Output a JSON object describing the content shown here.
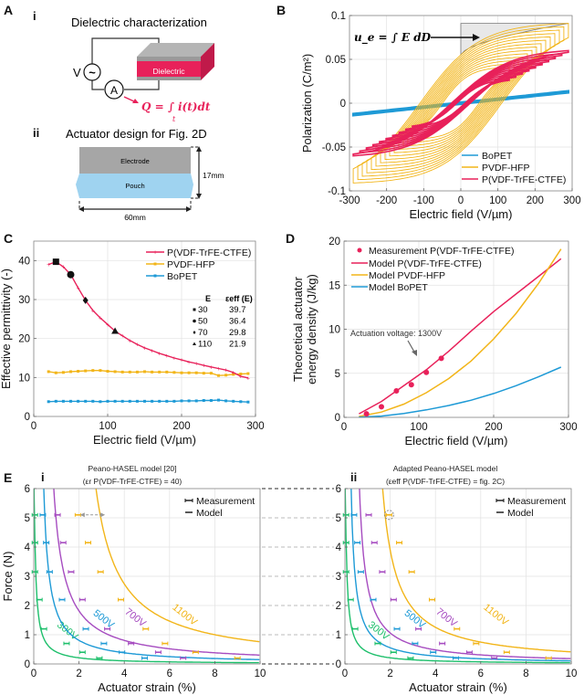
{
  "panelA": {
    "letter": "A",
    "i_label": "i",
    "i_title": "Dielectric characterization",
    "voltage_label": "V",
    "ammeter_label": "A",
    "source_symbol": "~",
    "dielectric_label": "Dielectric",
    "charge_formula": "Q = ∫ i(t)dt",
    "charge_formula_sub": "t",
    "ii_label": "ii",
    "ii_title": "Actuator design for Fig. 2D",
    "electrode_label": "Electrode",
    "pouch_label": "Pouch",
    "height_dim": "17mm",
    "width_dim": "60mm",
    "colors": {
      "dielectric": "#e8215a",
      "electrode": "#a6a6a6",
      "pouch": "#9fd3f0"
    }
  },
  "colors": {
    "bopet": "#1e9ad6",
    "pvdf_hfp": "#f2b519",
    "pvdf_trfe_ctfe": "#e8215a",
    "v300": "#1dbf6b",
    "v500": "#1e9ad6",
    "v700": "#a64cc0",
    "v1100": "#f2b519"
  },
  "chart_data": [
    {
      "id": "B",
      "letter": "B",
      "type": "line",
      "title": "",
      "xlabel": "Electric field (V/µm)",
      "ylabel": "Polarization (C/m²)",
      "xlim": [
        -300,
        300
      ],
      "ylim": [
        -0.1,
        0.1
      ],
      "xticks": [
        "-300",
        "-200",
        "-100",
        "0",
        "100",
        "200",
        "300"
      ],
      "xtick_values": [
        -300,
        -200,
        -100,
        0,
        100,
        200,
        300
      ],
      "yticks": [
        "-0.1",
        "-0.05",
        "0",
        "0.05",
        "0.1"
      ],
      "ytick_values": [
        -0.1,
        -0.05,
        0,
        0.05,
        0.1
      ],
      "grid": true,
      "legend_position": "bottom-right",
      "annotation": "u_e = ∫ E dD",
      "series": [
        {
          "name": "BoPET",
          "kind": "hysteresis",
          "emax": 290,
          "pmax": 0.013,
          "remanent": 0.001,
          "loops": 1
        },
        {
          "name": "PVDF-HFP",
          "kind": "hysteresis",
          "emax": 290,
          "pmax": 0.091,
          "remanent": 0.045,
          "coercive": 110,
          "loops": 14
        },
        {
          "name": "P(VDF-TrFE-CTFE)",
          "kind": "hysteresis",
          "emax": 290,
          "pmax": 0.06,
          "remanent": 0.012,
          "coercive": 25,
          "loops": 10
        }
      ]
    },
    {
      "id": "C",
      "letter": "C",
      "type": "line",
      "xlabel": "Electric field (V/µm)",
      "ylabel": "Effective permittivity (-)",
      "xlim": [
        0,
        300
      ],
      "ylim": [
        0,
        45
      ],
      "xticks": [
        "0",
        "100",
        "200",
        "300"
      ],
      "xtick_values": [
        0,
        100,
        200,
        300
      ],
      "yticks": [
        "0",
        "10",
        "20",
        "30",
        "40"
      ],
      "ytick_values": [
        0,
        10,
        20,
        30,
        40
      ],
      "grid": true,
      "legend_position": "top-right",
      "x": [
        20,
        30,
        40,
        50,
        60,
        70,
        80,
        90,
        100,
        110,
        120,
        130,
        140,
        150,
        160,
        170,
        180,
        190,
        200,
        210,
        220,
        230,
        240,
        250,
        260,
        270,
        280,
        290
      ],
      "series": [
        {
          "name": "P(VDF-TrFE-CTFE)",
          "values": [
            39.0,
            39.7,
            38.4,
            36.4,
            33.0,
            29.8,
            27.2,
            25.3,
            23.6,
            21.9,
            20.7,
            19.5,
            18.5,
            17.6,
            16.9,
            16.2,
            15.6,
            15.0,
            14.5,
            14.0,
            13.6,
            13.1,
            12.7,
            12.3,
            11.9,
            11.3,
            10.3,
            9.9
          ]
        },
        {
          "name": "PVDF-HFP",
          "values": [
            11.5,
            11.2,
            11.3,
            11.5,
            11.6,
            11.7,
            11.8,
            11.8,
            11.6,
            11.5,
            11.4,
            11.4,
            11.4,
            11.5,
            11.4,
            11.4,
            11.4,
            11.3,
            11.2,
            11.2,
            11.2,
            11.1,
            11.1,
            10.5,
            10.6,
            10.8,
            10.9,
            11.0
          ]
        },
        {
          "name": "BoPET",
          "values": [
            3.8,
            3.9,
            3.9,
            3.9,
            3.9,
            3.9,
            3.9,
            3.8,
            3.9,
            3.9,
            3.9,
            3.9,
            3.9,
            3.9,
            3.9,
            3.9,
            3.9,
            3.9,
            4.0,
            4.0,
            4.0,
            4.1,
            4.1,
            4.2,
            4.0,
            3.9,
            3.8,
            3.7
          ]
        }
      ],
      "highlight_table": {
        "header_e": "E",
        "header_eps": "εeff (E)",
        "rows": [
          {
            "marker": "square",
            "e": "30",
            "eps": "39.7"
          },
          {
            "marker": "circle",
            "e": "50",
            "eps": "36.4"
          },
          {
            "marker": "diamond",
            "e": "70",
            "eps": "29.8"
          },
          {
            "marker": "triangle",
            "e": "110",
            "eps": "21.9"
          }
        ]
      }
    },
    {
      "id": "D",
      "letter": "D",
      "type": "line",
      "xlabel": "Electric field (V/µm)",
      "ylabel_line1": "Theoretical actuator",
      "ylabel_line2": "energy density (J/kg)",
      "xlim": [
        0,
        300
      ],
      "ylim": [
        0,
        20
      ],
      "xticks": [
        "0",
        "100",
        "200",
        "300"
      ],
      "xtick_values": [
        0,
        100,
        200,
        300
      ],
      "yticks": [
        "0",
        "5",
        "10",
        "15",
        "20"
      ],
      "ytick_values": [
        0,
        5,
        10,
        15,
        20
      ],
      "grid": true,
      "legend_position": "top-left",
      "annotation": "Actuation voltage: 1300V",
      "measurement": {
        "name": "Measurement P(VDF-TrFE-CTFE)",
        "x": [
          30,
          50,
          70,
          90,
          110,
          130
        ],
        "y": [
          0.4,
          1.2,
          3.0,
          3.7,
          5.1,
          6.7
        ]
      },
      "series": [
        {
          "name": "Model P(VDF-TrFE-CTFE)",
          "x": [
            20,
            50,
            80,
            110,
            140,
            170,
            200,
            230,
            260,
            290
          ],
          "values": [
            0.4,
            1.8,
            3.6,
            5.4,
            7.5,
            9.8,
            12.0,
            14.0,
            16.0,
            18.0
          ]
        },
        {
          "name": "Model PVDF-HFP",
          "x": [
            20,
            50,
            80,
            110,
            140,
            170,
            200,
            230,
            260,
            290
          ],
          "values": [
            0.1,
            0.6,
            1.5,
            2.8,
            4.4,
            6.4,
            8.9,
            11.8,
            15.2,
            19.1
          ]
        },
        {
          "name": "Model BoPET",
          "x": [
            20,
            50,
            80,
            110,
            140,
            170,
            200,
            230,
            260,
            290
          ],
          "values": [
            0.02,
            0.15,
            0.45,
            0.85,
            1.35,
            1.95,
            2.7,
            3.6,
            4.6,
            5.7
          ]
        }
      ]
    },
    {
      "id": "E-i",
      "letter": "E",
      "sublabel": "i",
      "type": "scatter",
      "title_line1": "Peano-HASEL model [20]",
      "title_line2": "(εr P(VDF-TrFE-CTFE) = 40)",
      "xlabel": "Actuator strain (%)",
      "ylabel": "Force (N)",
      "xlim": [
        0,
        10
      ],
      "ylim": [
        0,
        6
      ],
      "xticks": [
        "0",
        "2",
        "4",
        "6",
        "8",
        "10"
      ],
      "xtick_values": [
        0,
        2,
        4,
        6,
        8,
        10
      ],
      "yticks": [
        "0",
        "1",
        "2",
        "3",
        "4",
        "5",
        "6"
      ],
      "ytick_values": [
        0,
        1,
        2,
        3,
        4,
        5,
        6
      ],
      "grid": true,
      "legend_position": "top-right",
      "legend": [
        "Measurement",
        "Model"
      ],
      "models": [
        {
          "name": "300V",
          "k": 0.43,
          "x0": -0.05
        },
        {
          "name": "500V",
          "k": 1.45,
          "x0": 0.2
        },
        {
          "name": "700V",
          "k": 2.9,
          "x0": 0.4
        },
        {
          "name": "1100V",
          "k": 6.3,
          "x0": 1.7
        }
      ]
    },
    {
      "id": "E-ii",
      "sublabel": "ii",
      "type": "scatter",
      "title_line1": "Adapted Peano-HASEL model",
      "title_line2": "(εeff P(VDF-TrFE-CTFE) = fig. 2C)",
      "xlabel": "Actuator strain (%)",
      "ylabel": "Force (N)",
      "xlim": [
        0,
        10
      ],
      "ylim": [
        0,
        6
      ],
      "xticks": [
        "0",
        "2",
        "4",
        "6",
        "8",
        "10"
      ],
      "xtick_values": [
        0,
        2,
        4,
        6,
        8,
        10
      ],
      "yticks": [
        "0",
        "1",
        "2",
        "3",
        "4",
        "5",
        "6"
      ],
      "ytick_values": [
        0,
        1,
        2,
        3,
        4,
        5,
        6
      ],
      "grid": true,
      "legend_position": "top-right",
      "legend": [
        "Measurement",
        "Model"
      ],
      "models": [
        {
          "name": "300V",
          "k": 0.43,
          "x0": -0.05
        },
        {
          "name": "500V",
          "k": 1.05,
          "x0": 0.1
        },
        {
          "name": "700V",
          "k": 1.75,
          "x0": 0.35
        },
        {
          "name": "1100V",
          "k": 3.7,
          "x0": 1.05
        }
      ]
    }
  ],
  "measurements_E": {
    "forces": [
      5.1,
      4.15,
      3.15,
      2.2,
      1.2,
      0.7,
      0.4,
      0.2
    ],
    "300V": [
      0.05,
      0.05,
      0.05,
      0.25,
      0.45,
      1.45,
      2.15,
      2.9
    ],
    "500V": [
      0.4,
      0.55,
      0.7,
      1.25,
      2.3,
      3.1,
      3.9,
      4.9
    ],
    "700V": [
      1.05,
      1.3,
      1.65,
      2.15,
      3.25,
      4.3,
      5.5,
      6.6
    ],
    "1100V": [
      1.95,
      2.4,
      2.95,
      3.85,
      4.95,
      5.8,
      7.15,
      9.0
    ]
  }
}
